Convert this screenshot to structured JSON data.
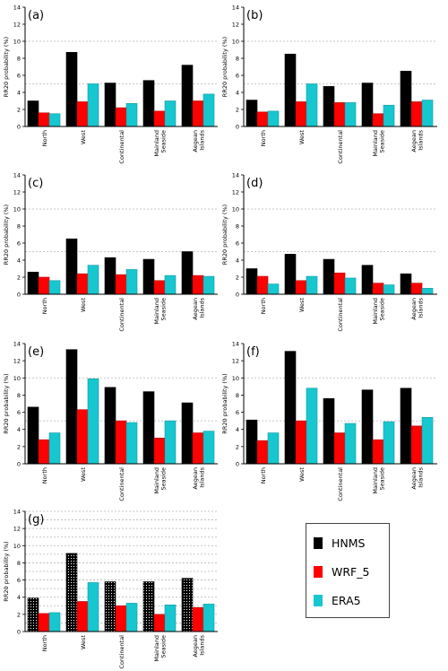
{
  "legend": {
    "items": [
      {
        "label": "HNMS",
        "color": "#000000"
      },
      {
        "label": "WRF_5",
        "color": "#ff0000"
      },
      {
        "label": "ERA5",
        "color": "#17c7cf"
      }
    ]
  },
  "chart_data": [
    {
      "type": "bar",
      "panel": "(a)",
      "categories": [
        "North",
        "West",
        "Continental",
        "Mainland Seaside",
        "Aegean Islands"
      ],
      "ylabel": "RR20 probability (%)",
      "ylim": [
        0,
        14
      ],
      "yticks": [
        0,
        2,
        4,
        6,
        8,
        10,
        12,
        14
      ],
      "series": [
        {
          "name": "HNMS",
          "values": [
            3.0,
            8.7,
            5.1,
            5.4,
            7.2
          ]
        },
        {
          "name": "WRF_5",
          "values": [
            1.6,
            2.9,
            2.2,
            1.8,
            3.0
          ]
        },
        {
          "name": "ERA5",
          "values": [
            1.5,
            5.0,
            2.7,
            3.0,
            3.8
          ]
        }
      ]
    },
    {
      "type": "bar",
      "panel": "(b)",
      "categories": [
        "North",
        "West",
        "Continental",
        "Mainland Seaside",
        "Aegean Islands"
      ],
      "ylabel": "RR20 probability (%)",
      "ylim": [
        0,
        14
      ],
      "yticks": [
        0,
        2,
        4,
        6,
        8,
        10,
        12,
        14
      ],
      "series": [
        {
          "name": "HNMS",
          "values": [
            3.1,
            8.5,
            4.7,
            5.1,
            6.5
          ]
        },
        {
          "name": "WRF_5",
          "values": [
            1.7,
            2.9,
            2.8,
            1.5,
            2.9
          ]
        },
        {
          "name": "ERA5",
          "values": [
            1.8,
            5.0,
            2.8,
            2.5,
            3.1
          ]
        }
      ]
    },
    {
      "type": "bar",
      "panel": "(c)",
      "categories": [
        "North",
        "West",
        "Continental",
        "Mainland Seaside",
        "Aegean Islands"
      ],
      "ylabel": "RR20 probability (%)",
      "ylim": [
        0,
        14
      ],
      "yticks": [
        0,
        2,
        4,
        6,
        8,
        10,
        12,
        14
      ],
      "series": [
        {
          "name": "HNMS",
          "values": [
            2.6,
            6.5,
            4.3,
            4.1,
            5.0
          ]
        },
        {
          "name": "WRF_5",
          "values": [
            2.0,
            2.4,
            2.3,
            1.6,
            2.2
          ]
        },
        {
          "name": "ERA5",
          "values": [
            1.6,
            3.4,
            2.9,
            2.2,
            2.1
          ]
        }
      ]
    },
    {
      "type": "bar",
      "panel": "(d)",
      "categories": [
        "North",
        "West",
        "Continental",
        "Mainland Seaside",
        "Aegean Islands"
      ],
      "ylabel": "RR20 probability (%)",
      "ylim": [
        0,
        14
      ],
      "yticks": [
        0,
        2,
        4,
        6,
        8,
        10,
        12,
        14
      ],
      "series": [
        {
          "name": "HNMS",
          "values": [
            3.0,
            4.7,
            4.1,
            3.4,
            2.4
          ]
        },
        {
          "name": "WRF_5",
          "values": [
            2.1,
            1.6,
            2.5,
            1.3,
            1.3
          ]
        },
        {
          "name": "ERA5",
          "values": [
            1.2,
            2.1,
            1.9,
            1.1,
            0.7
          ]
        }
      ]
    },
    {
      "type": "bar",
      "panel": "(e)",
      "categories": [
        "North",
        "West",
        "Continental",
        "Mainland Seaside",
        "Aegean Islands"
      ],
      "ylabel": "RR20 probability (%)",
      "ylim": [
        0,
        14
      ],
      "yticks": [
        0,
        2,
        4,
        6,
        8,
        10,
        12,
        14
      ],
      "series": [
        {
          "name": "HNMS",
          "values": [
            6.6,
            13.3,
            8.9,
            8.4,
            7.1
          ]
        },
        {
          "name": "WRF_5",
          "values": [
            2.8,
            6.3,
            5.0,
            3.0,
            3.6
          ]
        },
        {
          "name": "ERA5",
          "values": [
            3.6,
            9.9,
            4.8,
            5.0,
            3.8
          ]
        }
      ]
    },
    {
      "type": "bar",
      "panel": "(f)",
      "categories": [
        "North",
        "West",
        "Continental",
        "Mainland Seaside",
        "Aegean Islands"
      ],
      "ylabel": "RR20 probability (%)",
      "ylim": [
        0,
        14
      ],
      "yticks": [
        0,
        2,
        4,
        6,
        8,
        10,
        12,
        14
      ],
      "series": [
        {
          "name": "HNMS",
          "values": [
            5.1,
            13.1,
            7.6,
            8.6,
            8.8
          ]
        },
        {
          "name": "WRF_5",
          "values": [
            2.7,
            5.0,
            3.6,
            2.8,
            4.4
          ]
        },
        {
          "name": "ERA5",
          "values": [
            3.6,
            8.8,
            4.7,
            4.9,
            5.4
          ]
        }
      ]
    },
    {
      "type": "bar",
      "panel": "(g)",
      "categories": [
        "North",
        "West",
        "Continental",
        "Mainland Seaside",
        "Aegean Islands"
      ],
      "ylabel": "RR20 probability (%)",
      "ylim": [
        0,
        14
      ],
      "yticks": [
        0,
        2,
        4,
        6,
        8,
        10,
        12,
        14
      ],
      "series": [
        {
          "name": "HNMS",
          "values": [
            3.9,
            9.1,
            5.8,
            5.8,
            6.2
          ]
        },
        {
          "name": "WRF_5",
          "values": [
            2.1,
            3.5,
            3.0,
            2.0,
            2.8
          ]
        },
        {
          "name": "ERA5",
          "values": [
            2.2,
            5.7,
            3.3,
            3.1,
            3.2
          ]
        }
      ]
    }
  ]
}
